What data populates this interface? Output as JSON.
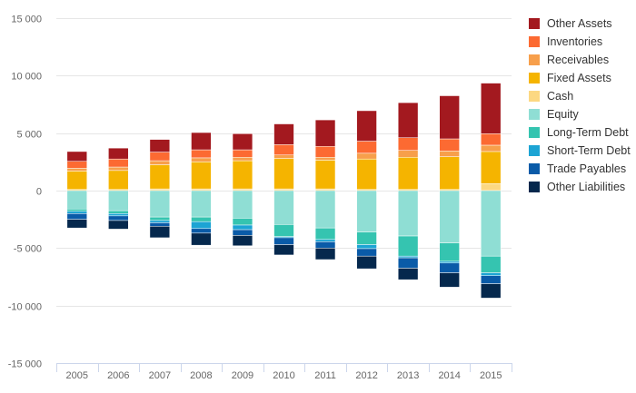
{
  "chart_data": {
    "type": "bar",
    "stacked": true,
    "categories": [
      "2005",
      "2006",
      "2007",
      "2008",
      "2009",
      "2010",
      "2011",
      "2012",
      "2013",
      "2014",
      "2015"
    ],
    "ylim": [
      -15000,
      15000
    ],
    "yticks": [
      -15000,
      -10000,
      -5000,
      0,
      5000,
      10000,
      15000
    ],
    "ytick_labels": [
      "-15 000",
      "-10 000",
      "-5 000",
      "0",
      "5 000",
      "10 000",
      "15 000"
    ],
    "grid": true,
    "legend_position": "right",
    "series": [
      {
        "name": "Other Assets",
        "color": "#a3191f",
        "values": [
          850,
          950,
          1100,
          1500,
          1400,
          1800,
          2300,
          2650,
          3050,
          3750,
          4400
        ]
      },
      {
        "name": "Inventories",
        "color": "#fc6a32",
        "values": [
          600,
          700,
          750,
          700,
          650,
          900,
          950,
          1050,
          1100,
          1050,
          1000
        ]
      },
      {
        "name": "Receivables",
        "color": "#f79f4b",
        "values": [
          250,
          300,
          350,
          350,
          300,
          300,
          250,
          500,
          600,
          500,
          550
        ]
      },
      {
        "name": "Fixed Assets",
        "color": "#f5b400",
        "values": [
          1600,
          1650,
          2100,
          2350,
          2450,
          2650,
          2500,
          2650,
          2800,
          2850,
          2800
        ]
      },
      {
        "name": "Cash",
        "color": "#fcd882",
        "values": [
          100,
          100,
          150,
          150,
          150,
          150,
          150,
          100,
          100,
          100,
          600
        ]
      },
      {
        "name": "Equity",
        "color": "#8fded4",
        "values": [
          -1600,
          -1750,
          -2300,
          -2300,
          -2400,
          -2950,
          -3250,
          -3600,
          -3950,
          -4550,
          -5700
        ]
      },
      {
        "name": "Long-Term Debt",
        "color": "#35c4b0",
        "values": [
          -200,
          -250,
          -300,
          -400,
          -600,
          -1050,
          -1000,
          -1100,
          -1750,
          -1600,
          -1450
        ]
      },
      {
        "name": "Short-Term Debt",
        "color": "#1ca4d4",
        "values": [
          -200,
          -200,
          -200,
          -600,
          -400,
          -100,
          -200,
          -350,
          -150,
          -150,
          -250
        ]
      },
      {
        "name": "Trade Payables",
        "color": "#0a5ba8",
        "values": [
          -500,
          -400,
          -300,
          -400,
          -500,
          -600,
          -550,
          -650,
          -900,
          -850,
          -700
        ]
      },
      {
        "name": "Other Liabilities",
        "color": "#05284d",
        "values": [
          -750,
          -750,
          -1000,
          -1050,
          -900,
          -900,
          -1000,
          -1100,
          -1000,
          -1250,
          -1250
        ]
      }
    ]
  }
}
